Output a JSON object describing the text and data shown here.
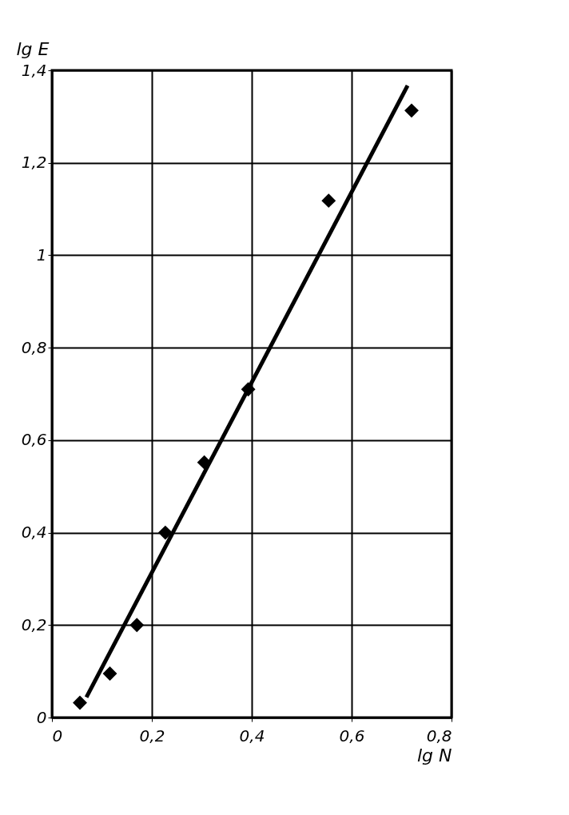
{
  "chart_data": {
    "type": "scatter",
    "xlabel": "lg N",
    "ylabel": "lg E",
    "xlim": [
      0,
      0.8
    ],
    "ylim": [
      0,
      1.4
    ],
    "xticks": [
      0,
      {
        "value": 0.2,
        "label": "0,2"
      },
      {
        "value": 0.4,
        "label": "0,4"
      },
      {
        "value": 0.6,
        "label": "0,6"
      },
      {
        "value": 0.8,
        "label": "0,8"
      }
    ],
    "yticks": [
      0,
      {
        "value": 0.2,
        "label": "0,2"
      },
      {
        "value": 0.4,
        "label": "0,4"
      },
      {
        "value": 0.6,
        "label": "0,6"
      },
      {
        "value": 0.8,
        "label": "0,8"
      },
      1,
      {
        "value": 1.2,
        "label": "1,2"
      },
      {
        "value": 1.4,
        "label": "1,4"
      }
    ],
    "grid": true,
    "marker": "diamond",
    "series": [
      {
        "type": "line",
        "marker": "none",
        "color": "#000000",
        "x": [
          0.069,
          0.712
        ],
        "values": [
          0.044,
          1.367
        ]
      },
      {
        "color": "#000000",
        "x": [
          0.056,
          0.116,
          0.17,
          0.227,
          0.305,
          0.393,
          0.554,
          0.72
        ],
        "values": [
          0.032,
          0.095,
          0.2,
          0.4,
          0.552,
          0.71,
          1.118,
          1.313
        ]
      }
    ]
  }
}
